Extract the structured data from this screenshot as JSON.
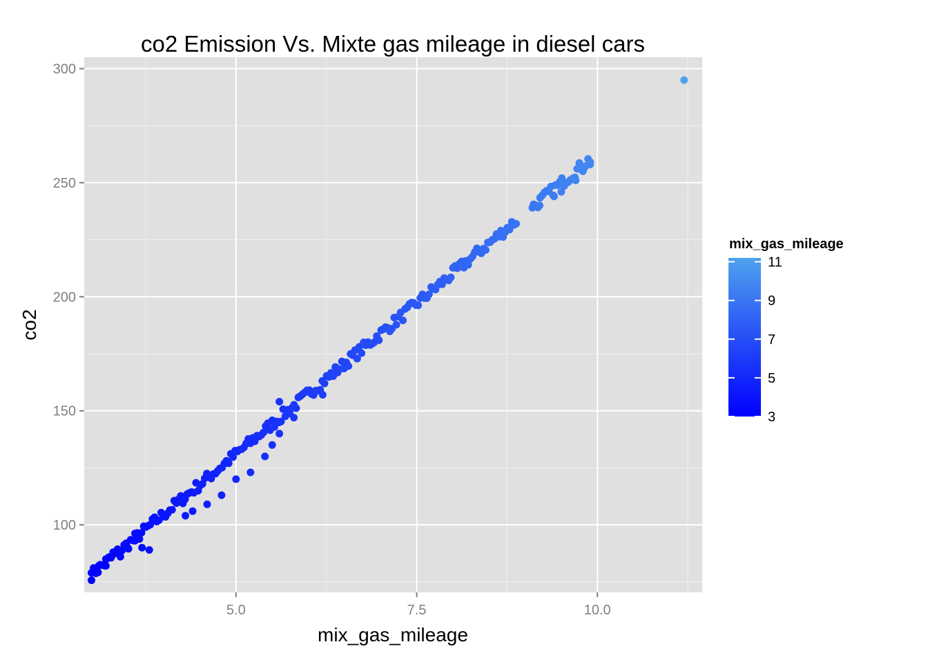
{
  "chart_data": {
    "type": "scatter",
    "title": "co2 Emission Vs. Mixte gas mileage in diesel cars",
    "xlabel": "mix_gas_mileage",
    "ylabel": "co2",
    "xlim": [
      2.9,
      11.45
    ],
    "ylim": [
      70.4,
      305
    ],
    "x_ticks": [
      5.0,
      7.5,
      10.0
    ],
    "x_tick_labels": [
      "5.0",
      "7.5",
      "10.0"
    ],
    "y_ticks": [
      100,
      150,
      200,
      250,
      300
    ],
    "y_tick_labels": [
      "100",
      "150",
      "200",
      "250",
      "300"
    ],
    "grid": true,
    "background": "#e0e0e0",
    "grid_color": "#ffffff",
    "point_color_low": "#0000ff",
    "point_color_high": "#4ea1ee",
    "legend": {
      "title": "mix_gas_mileage",
      "placement": "right",
      "type": "colorbar",
      "range": [
        3,
        11.2
      ],
      "ticks": [
        3,
        5,
        7,
        9,
        11
      ],
      "tick_labels": [
        "3",
        "5",
        "7",
        "9",
        "11"
      ]
    },
    "trend": {
      "slope": 26.4,
      "intercept": -1,
      "x_from": 3.0,
      "x_to": 9.9,
      "count": 230
    },
    "points": [
      [
        3.0,
        79
      ],
      [
        3.1,
        82
      ],
      [
        3.2,
        82
      ],
      [
        3.2,
        85
      ],
      [
        3.3,
        88
      ],
      [
        3.4,
        86
      ],
      [
        3.5,
        90
      ],
      [
        3.6,
        93
      ],
      [
        3.7,
        90
      ],
      [
        3.8,
        89
      ],
      [
        4.0,
        104
      ],
      [
        4.3,
        104
      ],
      [
        4.4,
        106
      ],
      [
        4.6,
        109
      ],
      [
        4.8,
        113
      ],
      [
        5.0,
        120
      ],
      [
        5.2,
        123
      ],
      [
        5.4,
        130
      ],
      [
        5.5,
        135
      ],
      [
        5.6,
        154
      ],
      [
        5.6,
        140
      ],
      [
        5.8,
        147
      ],
      [
        6.2,
        157
      ],
      [
        9.1,
        239
      ],
      [
        9.2,
        240
      ],
      [
        9.4,
        244
      ],
      [
        9.5,
        246
      ],
      [
        9.7,
        251
      ],
      [
        9.8,
        255
      ],
      [
        9.9,
        258
      ],
      [
        11.2,
        295
      ]
    ]
  }
}
